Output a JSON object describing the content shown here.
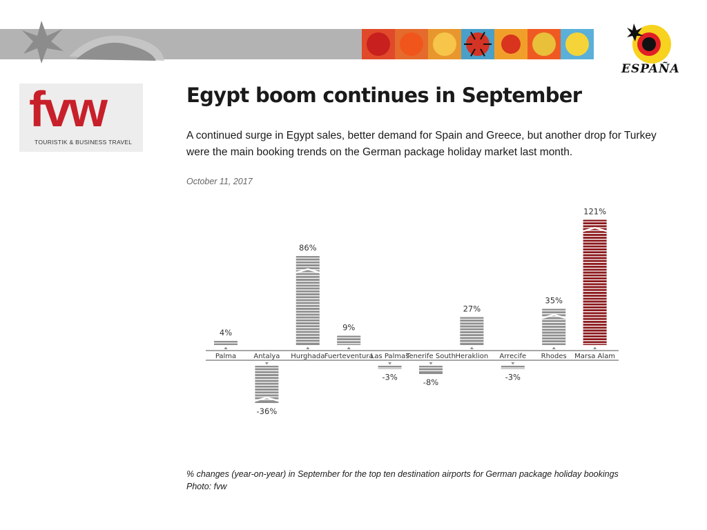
{
  "banner": {
    "deco_icon": "star-sun-decoration",
    "tiles": [
      {
        "icon": "sun-tile-1",
        "bg": "#e0492a",
        "fg": "#c8201e"
      },
      {
        "icon": "sun-tile-2",
        "bg": "#e56b2c",
        "fg": "#f0561c"
      },
      {
        "icon": "sun-tile-3",
        "bg": "#e8962e",
        "fg": "#f6c54a"
      },
      {
        "icon": "bug-tile",
        "bg": "#4aa0c8",
        "fg": "#d43425"
      },
      {
        "icon": "shapes-tile",
        "bg": "#f0a02a",
        "fg": "#d8341e"
      },
      {
        "icon": "sun-tile-4",
        "bg": "#ef5a22",
        "fg": "#e8c03a"
      },
      {
        "icon": "sun-tile-5",
        "bg": "#5ab0d8",
        "fg": "#f5d43a"
      }
    ]
  },
  "espana_logo": {
    "text": "ESPAÑA",
    "icon": "espana-sun-logo"
  },
  "fvw": {
    "wordmark": "fvw",
    "tagline": "TOURISTIK & BUSINESS TRAVEL",
    "brand_color": "#c8202a"
  },
  "article": {
    "headline": "Egypt boom continues in September",
    "lede": "A continued surge in Egypt sales, better demand for Spain and Greece, but another drop for Turkey were the main booking trends on the German package holiday market last month.",
    "date": "October 11, 2017",
    "caption_line1": "% changes (year-on-year) in September for the top ten destination airports for German package holiday bookings",
    "caption_line2": "Photo: fvw"
  },
  "chart_data": {
    "type": "bar",
    "categories": [
      "Palma",
      "Antalya",
      "Hurghada",
      "Fuerteventura",
      "Las Palmas",
      "Tenerife South",
      "Heraklion",
      "Arrecife",
      "Rhodes",
      "Marsa Alam"
    ],
    "values": [
      4,
      -36,
      86,
      9,
      -3,
      -8,
      27,
      -3,
      35,
      121
    ],
    "data_labels": [
      "4%",
      "-36%",
      "86%",
      "9%",
      "-3%",
      "-8%",
      "27%",
      "-3%",
      "35%",
      "121%"
    ],
    "prior_markers": [
      null,
      -32,
      72,
      null,
      null,
      null,
      null,
      null,
      28,
      112
    ],
    "highlight_category": "Marsa Alam",
    "colors": {
      "bar": "#8f8f8f",
      "highlight": "#8c1a1d",
      "stripe": "#ffffff"
    },
    "ylim": [
      -40,
      125
    ]
  }
}
